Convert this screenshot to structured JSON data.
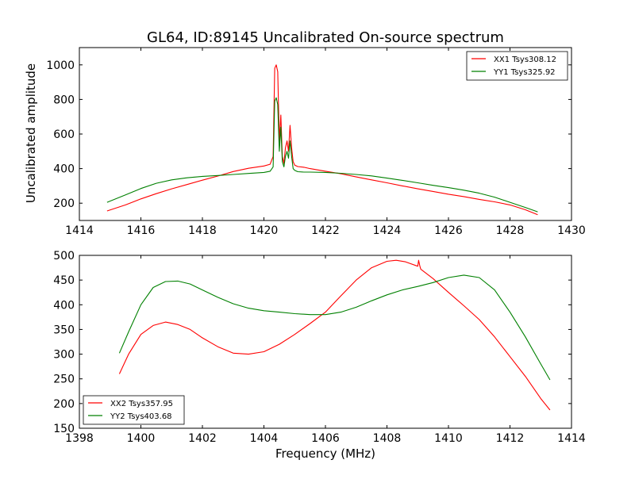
{
  "chart_data": [
    {
      "type": "line",
      "title": "GL64, ID:89145 Uncalibrated On-source spectrum",
      "xlabel": "",
      "ylabel": "Uncalibrated amplitude",
      "xlim": [
        1414,
        1430
      ],
      "ylim": [
        100,
        1100
      ],
      "xticks": [
        1414,
        1416,
        1418,
        1420,
        1422,
        1424,
        1426,
        1428,
        1430
      ],
      "yticks": [
        200,
        400,
        600,
        800,
        1000
      ],
      "grid": false,
      "legend_position": "top-right",
      "series": [
        {
          "name": "XX1 Tsys308.12",
          "color": "#ff0000",
          "x": [
            1414.9,
            1415.5,
            1416,
            1416.5,
            1417,
            1417.5,
            1418,
            1418.5,
            1419,
            1419.5,
            1420,
            1420.2,
            1420.3,
            1420.35,
            1420.4,
            1420.45,
            1420.5,
            1420.55,
            1420.6,
            1420.65,
            1420.7,
            1420.75,
            1420.8,
            1420.85,
            1420.9,
            1420.95,
            1421.0,
            1421.1,
            1421.3,
            1421.5,
            1422,
            1422.5,
            1423,
            1423.5,
            1424,
            1424.5,
            1425,
            1425.5,
            1426,
            1426.5,
            1427,
            1427.5,
            1428,
            1428.5,
            1428.9
          ],
          "y": [
            155,
            190,
            225,
            255,
            283,
            308,
            333,
            357,
            383,
            402,
            415,
            425,
            470,
            980,
            1000,
            960,
            560,
            710,
            470,
            430,
            520,
            560,
            500,
            650,
            520,
            440,
            420,
            412,
            408,
            400,
            385,
            370,
            352,
            335,
            318,
            300,
            283,
            268,
            252,
            238,
            222,
            208,
            190,
            162,
            133
          ]
        },
        {
          "name": "YY1 Tsys325.92",
          "color": "#008000",
          "x": [
            1414.9,
            1415.5,
            1416,
            1416.5,
            1417,
            1417.5,
            1418,
            1418.5,
            1419,
            1419.5,
            1420,
            1420.2,
            1420.3,
            1420.35,
            1420.4,
            1420.45,
            1420.5,
            1420.55,
            1420.6,
            1420.65,
            1420.7,
            1420.75,
            1420.8,
            1420.85,
            1420.9,
            1420.95,
            1421.0,
            1421.1,
            1421.3,
            1421.5,
            1422,
            1422.5,
            1423,
            1423.5,
            1424,
            1424.5,
            1425,
            1425.5,
            1426,
            1426.5,
            1427,
            1427.5,
            1428,
            1428.5,
            1428.9
          ],
          "y": [
            205,
            248,
            285,
            315,
            335,
            347,
            355,
            360,
            366,
            372,
            378,
            385,
            410,
            790,
            810,
            770,
            500,
            640,
            440,
            410,
            470,
            500,
            460,
            560,
            470,
            400,
            390,
            382,
            380,
            380,
            378,
            373,
            366,
            358,
            345,
            332,
            318,
            303,
            290,
            275,
            258,
            235,
            205,
            175,
            150
          ]
        }
      ]
    },
    {
      "type": "line",
      "title": "",
      "xlabel": "Frequency (MHz)",
      "ylabel": "",
      "xlim": [
        1398,
        1414
      ],
      "ylim": [
        150,
        500
      ],
      "xticks": [
        1398,
        1400,
        1402,
        1404,
        1406,
        1408,
        1410,
        1412,
        1414
      ],
      "yticks": [
        150,
        200,
        250,
        300,
        350,
        400,
        450,
        500
      ],
      "grid": false,
      "legend_position": "bottom-left",
      "series": [
        {
          "name": "XX2 Tsys357.95",
          "color": "#ff0000",
          "x": [
            1399.3,
            1399.6,
            1400,
            1400.4,
            1400.8,
            1401.2,
            1401.6,
            1402,
            1402.5,
            1403,
            1403.5,
            1404,
            1404.5,
            1405,
            1405.5,
            1406,
            1406.5,
            1407,
            1407.5,
            1408,
            1408.3,
            1408.6,
            1409,
            1409.03,
            1409.07,
            1409.1,
            1409.5,
            1410,
            1410.5,
            1411,
            1411.5,
            1412,
            1412.5,
            1413,
            1413.3
          ],
          "y": [
            260,
            300,
            340,
            358,
            365,
            360,
            350,
            333,
            315,
            302,
            300,
            305,
            320,
            340,
            362,
            385,
            418,
            450,
            475,
            488,
            490,
            487,
            478,
            490,
            478,
            472,
            453,
            425,
            398,
            370,
            335,
            295,
            255,
            210,
            187
          ]
        },
        {
          "name": "YY2 Tsys403.68",
          "color": "#008000",
          "x": [
            1399.3,
            1399.6,
            1400,
            1400.4,
            1400.8,
            1401.2,
            1401.6,
            1402,
            1402.5,
            1403,
            1403.5,
            1404,
            1404.5,
            1405,
            1405.5,
            1406,
            1406.5,
            1407,
            1407.5,
            1408,
            1408.5,
            1409,
            1409.5,
            1410,
            1410.5,
            1411,
            1411.5,
            1412,
            1412.5,
            1413,
            1413.3
          ],
          "y": [
            302,
            345,
            400,
            435,
            447,
            448,
            442,
            430,
            415,
            402,
            393,
            388,
            385,
            382,
            380,
            380,
            385,
            395,
            408,
            420,
            430,
            437,
            445,
            455,
            460,
            455,
            430,
            385,
            335,
            280,
            248
          ]
        }
      ]
    }
  ]
}
